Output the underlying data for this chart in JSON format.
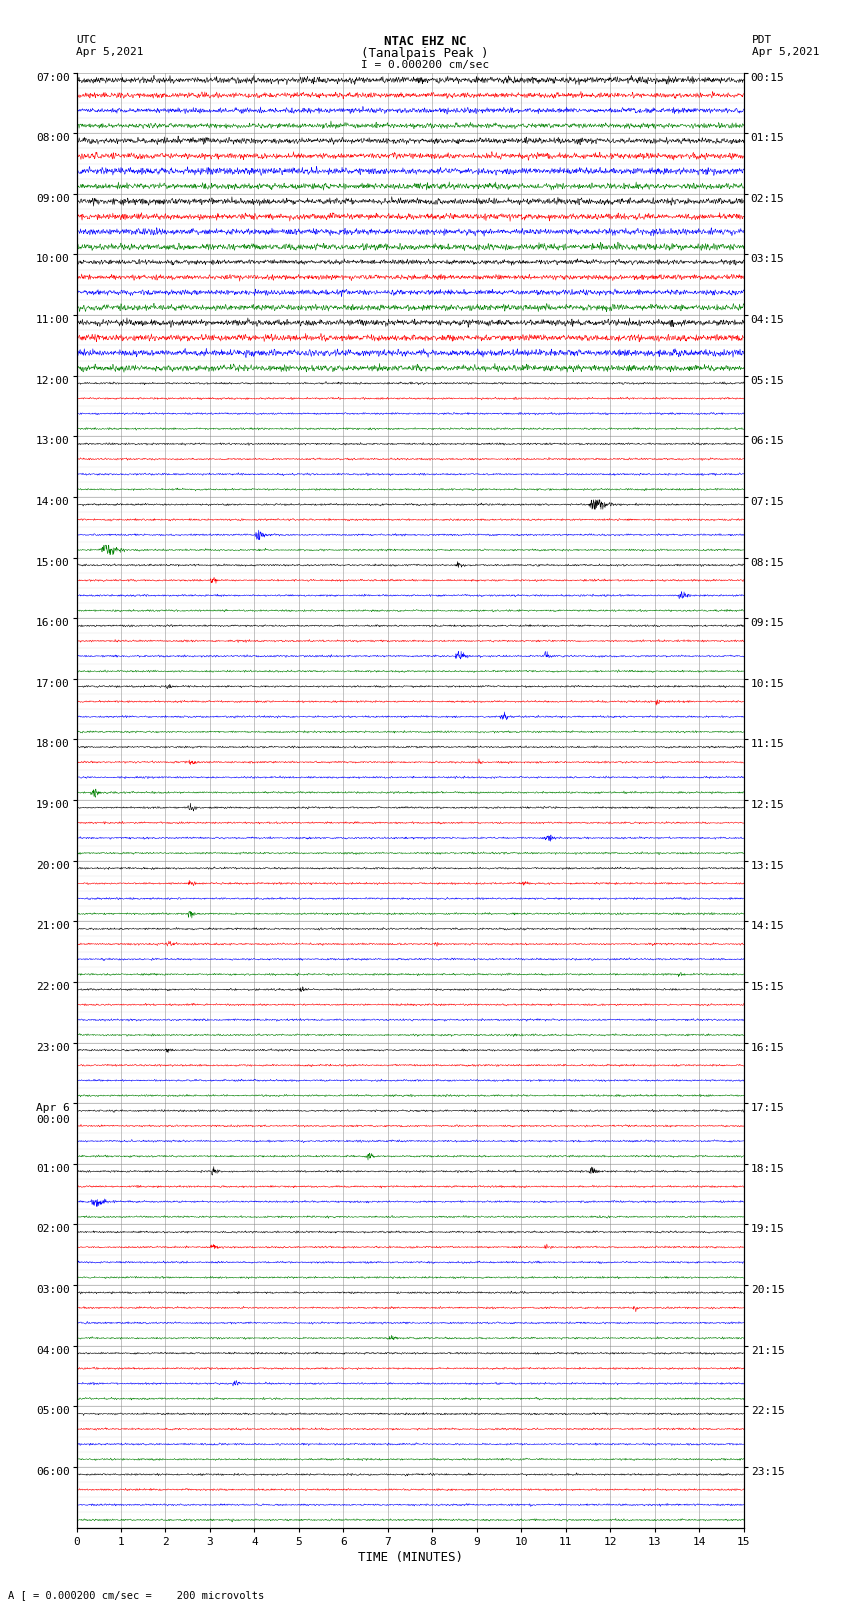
{
  "title_line1": "NTAC EHZ NC",
  "title_line2": "(Tanalpais Peak )",
  "scale_label": "I = 0.000200 cm/sec",
  "utc_label": "UTC",
  "utc_date": "Apr 5,2021",
  "pdt_label": "PDT",
  "pdt_date": "Apr 5,2021",
  "bottom_label": "A [ = 0.000200 cm/sec =    200 microvolts",
  "xlabel": "TIME (MINUTES)",
  "time_axis_min": 0,
  "time_axis_max": 15,
  "time_ticks": [
    0,
    1,
    2,
    3,
    4,
    5,
    6,
    7,
    8,
    9,
    10,
    11,
    12,
    13,
    14,
    15
  ],
  "left_times": [
    "07:00",
    "08:00",
    "09:00",
    "10:00",
    "11:00",
    "12:00",
    "13:00",
    "14:00",
    "15:00",
    "16:00",
    "17:00",
    "18:00",
    "19:00",
    "20:00",
    "21:00",
    "22:00",
    "23:00",
    "Apr 6\n00:00",
    "01:00",
    "02:00",
    "03:00",
    "04:00",
    "05:00",
    "06:00"
  ],
  "right_times": [
    "00:15",
    "01:15",
    "02:15",
    "03:15",
    "04:15",
    "05:15",
    "06:15",
    "07:15",
    "08:15",
    "09:15",
    "10:15",
    "11:15",
    "12:15",
    "13:15",
    "14:15",
    "15:15",
    "16:15",
    "17:15",
    "18:15",
    "19:15",
    "20:15",
    "21:15",
    "22:15",
    "23:15"
  ],
  "colors": [
    "black",
    "red",
    "blue",
    "green"
  ],
  "num_groups": 24,
  "traces_per_group": 4,
  "background_color": "white",
  "grid_color": "#888888",
  "text_color": "black",
  "font_size": 8,
  "lw": 0.4,
  "trace_scale": 0.35,
  "noise_base": 0.04
}
